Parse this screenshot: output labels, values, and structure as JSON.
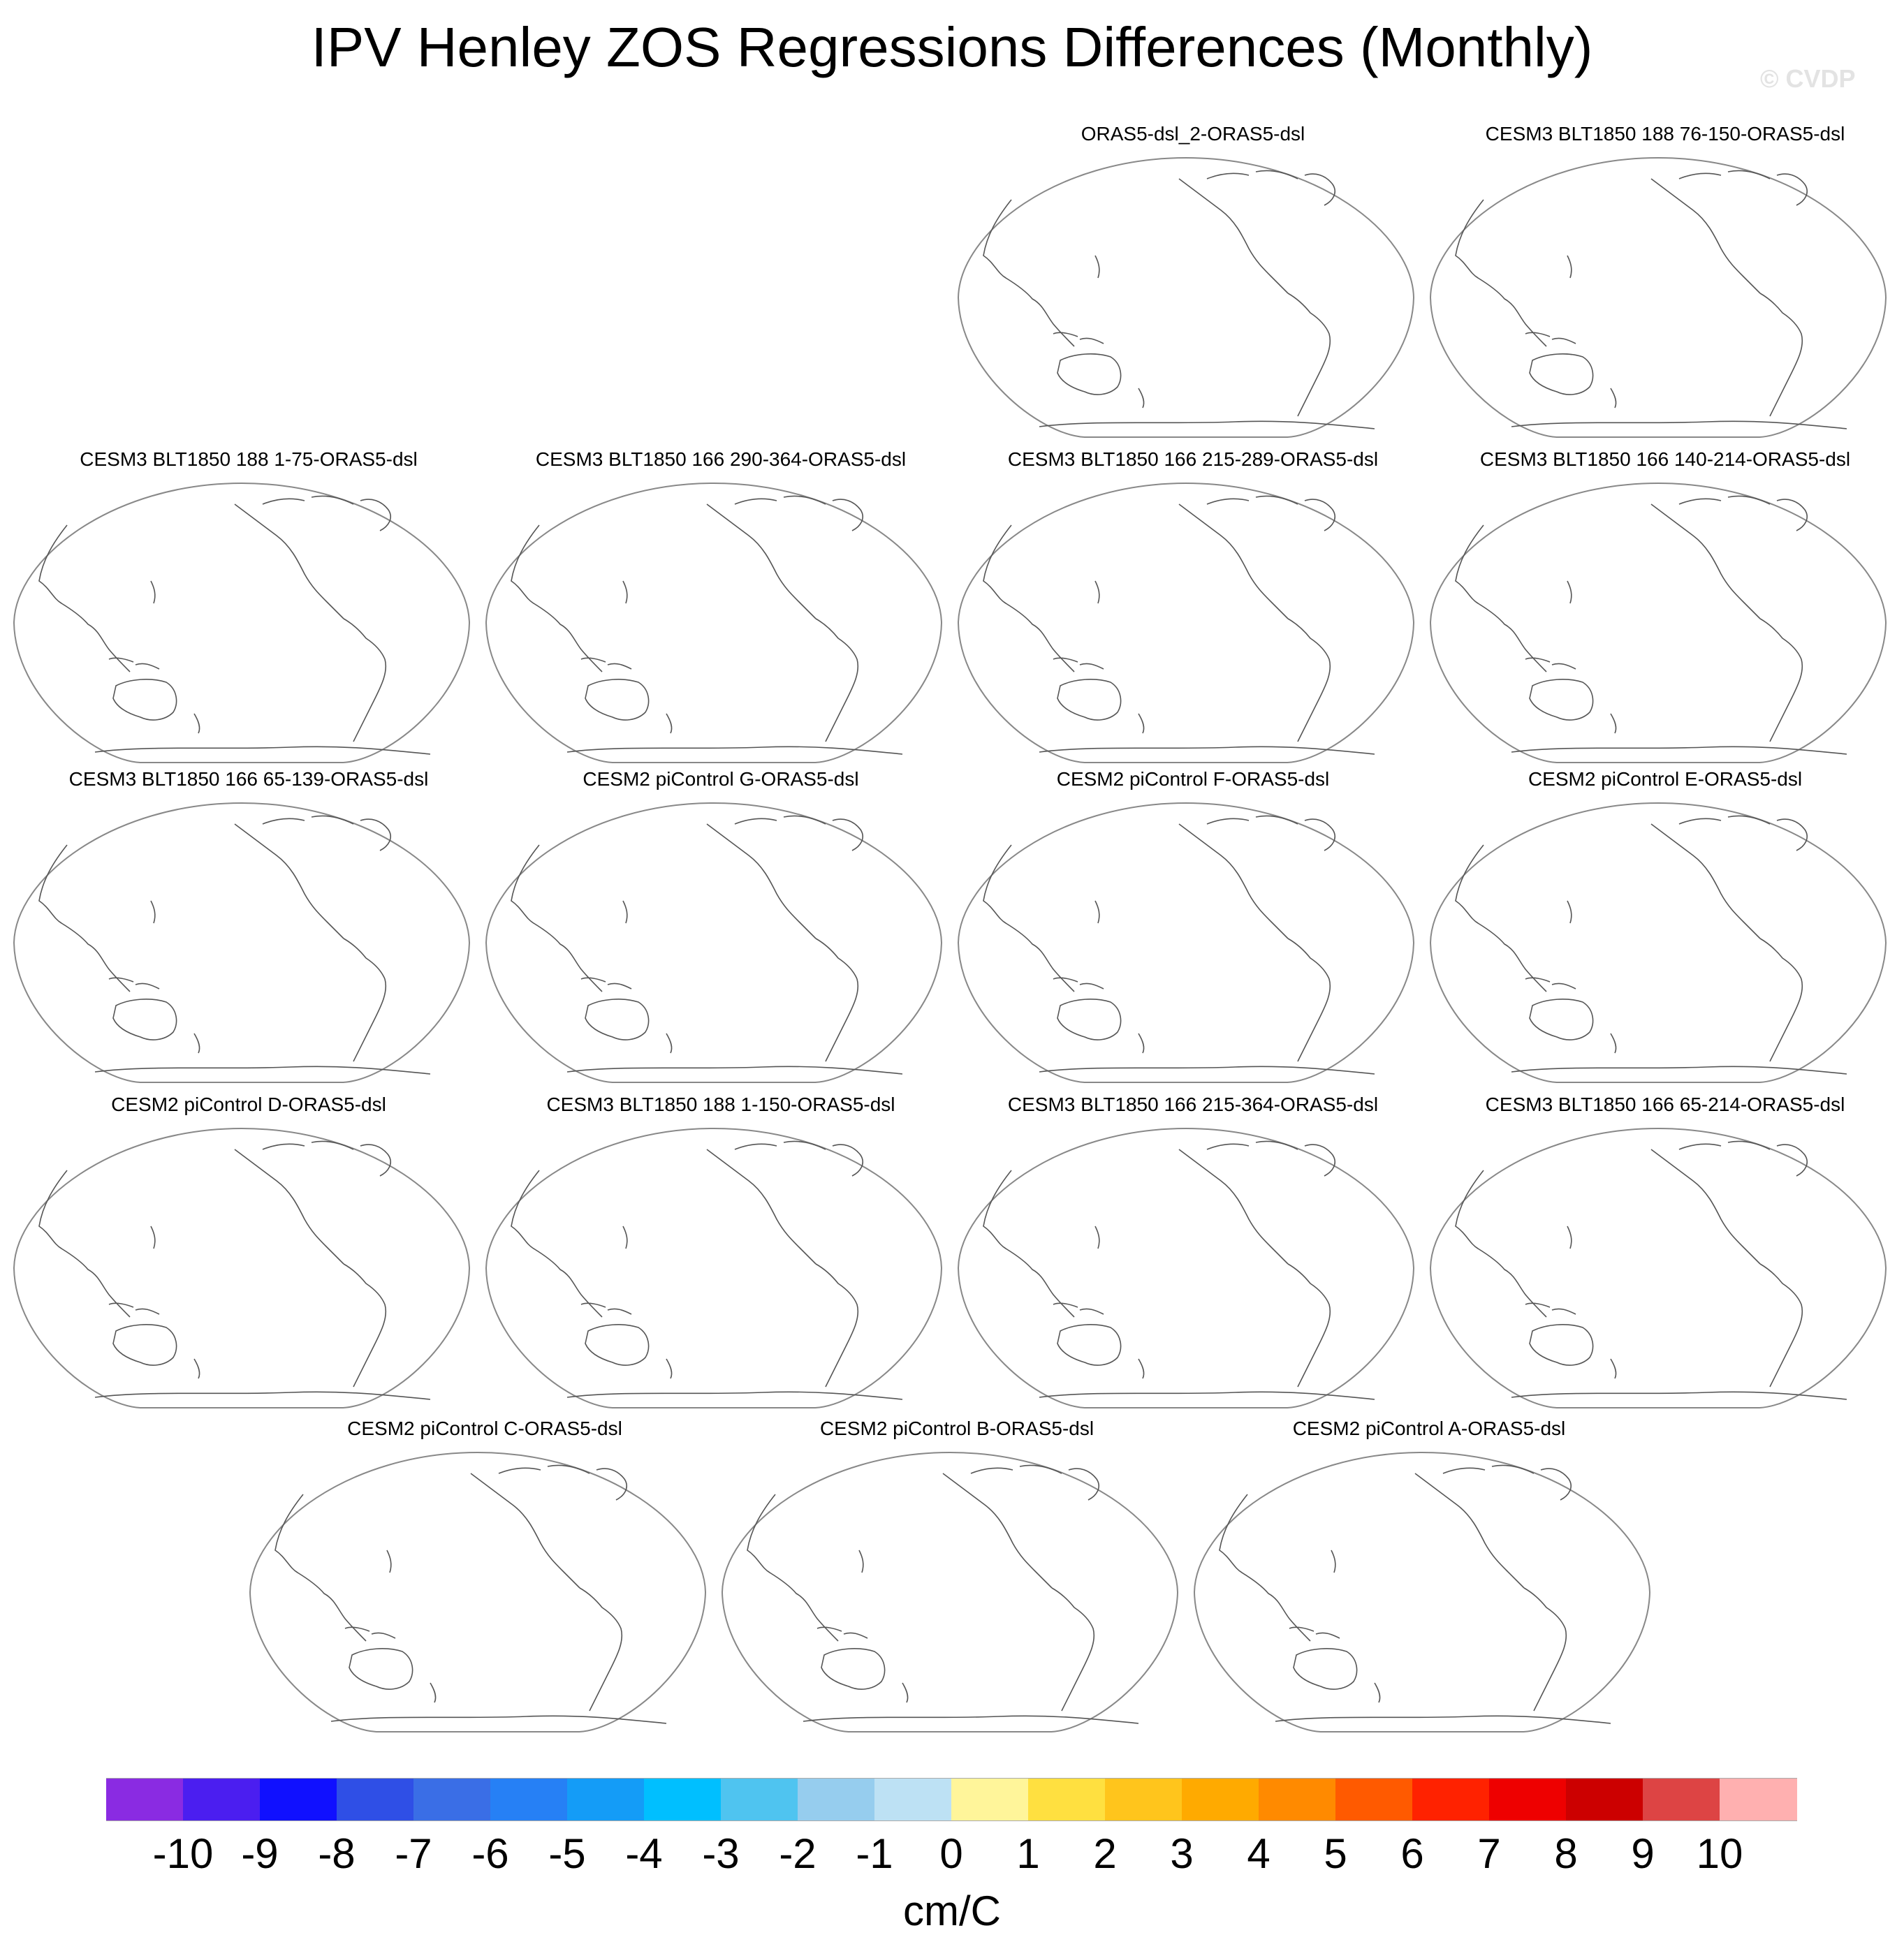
{
  "chart_data": {
    "type": "map-panel-grid",
    "title": "IPV Henley ZOS Regressions Differences (Monthly)",
    "watermark": "© CVDP",
    "projection": "Robinson, Pacific-centered",
    "panels": [
      {
        "title": "ORAS5-dsl_2-ORAS5-dsl"
      },
      {
        "title": "CESM3 BLT1850 188 76-150-ORAS5-dsl"
      },
      {
        "title": "CESM3 BLT1850 188 1-75-ORAS5-dsl"
      },
      {
        "title": "CESM3 BLT1850 166 290-364-ORAS5-dsl"
      },
      {
        "title": "CESM3 BLT1850 166 215-289-ORAS5-dsl"
      },
      {
        "title": "CESM3 BLT1850 166 140-214-ORAS5-dsl"
      },
      {
        "title": "CESM3 BLT1850 166 65-139-ORAS5-dsl"
      },
      {
        "title": "CESM2 piControl G-ORAS5-dsl"
      },
      {
        "title": "CESM2 piControl F-ORAS5-dsl"
      },
      {
        "title": "CESM2 piControl E-ORAS5-dsl"
      },
      {
        "title": "CESM2 piControl D-ORAS5-dsl"
      },
      {
        "title": "CESM3 BLT1850 188 1-150-ORAS5-dsl"
      },
      {
        "title": "CESM3 BLT1850 166 215-364-ORAS5-dsl"
      },
      {
        "title": "CESM3 BLT1850 166 65-214-ORAS5-dsl"
      },
      {
        "title": "CESM2 piControl C-ORAS5-dsl"
      },
      {
        "title": "CESM2 piControl B-ORAS5-dsl"
      },
      {
        "title": "CESM2 piControl A-ORAS5-dsl"
      }
    ],
    "colorbar": {
      "units": "cm/C",
      "tick_labels": [
        "-10",
        "-9",
        "-8",
        "-7",
        "-6",
        "-5",
        "-4",
        "-3",
        "-2",
        "-1",
        "0",
        "1",
        "2",
        "3",
        "4",
        "5",
        "6",
        "7",
        "8",
        "9",
        "10"
      ],
      "colors": [
        "#8a2be2",
        "#4b1ef0",
        "#1010ff",
        "#2f4fe6",
        "#3a6ee6",
        "#2680f5",
        "#149cf7",
        "#00bfff",
        "#4fc4f0",
        "#96cdee",
        "#bde1f4",
        "#fff59a",
        "#ffe040",
        "#ffc51c",
        "#ffaa00",
        "#ff8a00",
        "#ff5a00",
        "#ff2200",
        "#ee0000",
        "#cc0000",
        "#dd4444",
        "#ffb0b0"
      ]
    }
  }
}
